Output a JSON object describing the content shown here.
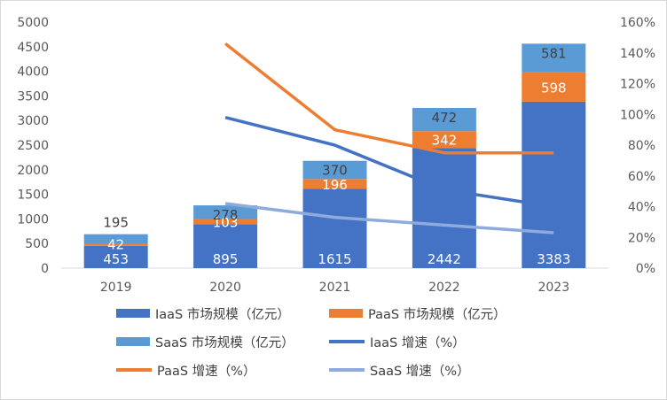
{
  "chart_data": {
    "type": "bar",
    "stacked": true,
    "categories": [
      "2019",
      "2020",
      "2021",
      "2022",
      "2023"
    ],
    "series": [
      {
        "name": "IaaS 市场规模（亿元）",
        "kind": "bar",
        "axis": "left",
        "color": "#4472c4",
        "values": [
          453,
          895,
          1615,
          2442,
          3383
        ]
      },
      {
        "name": "PaaS 市场规模（亿元）",
        "kind": "bar",
        "axis": "left",
        "color": "#ed7d31",
        "values": [
          42,
          103,
          196,
          342,
          598
        ]
      },
      {
        "name": "SaaS 市场规模（亿元）",
        "kind": "bar",
        "axis": "left",
        "color": "#5b9bd5",
        "values": [
          195,
          278,
          370,
          472,
          581
        ]
      },
      {
        "name": "IaaS 增速（%）",
        "kind": "line",
        "axis": "right",
        "color": "#4472c4",
        "values": [
          null,
          0.98,
          0.8,
          0.51,
          0.4
        ]
      },
      {
        "name": "PaaS 增速（%）",
        "kind": "line",
        "axis": "right",
        "color": "#ed7d31",
        "values": [
          null,
          1.46,
          0.9,
          0.75,
          0.75
        ]
      },
      {
        "name": "SaaS 增速（%）",
        "kind": "line",
        "axis": "right",
        "color": "#8faadc",
        "values": [
          null,
          0.42,
          0.33,
          0.28,
          0.23
        ]
      }
    ],
    "y_left": {
      "min": 0,
      "max": 5000,
      "step": 500
    },
    "y_right": {
      "min": 0,
      "max": 1.6,
      "step": 0.2,
      "format": "percent"
    },
    "grid": false,
    "legend_position": "bottom",
    "data_label_colors": {
      "inside": "#ffffff",
      "outside": "#404040"
    }
  }
}
